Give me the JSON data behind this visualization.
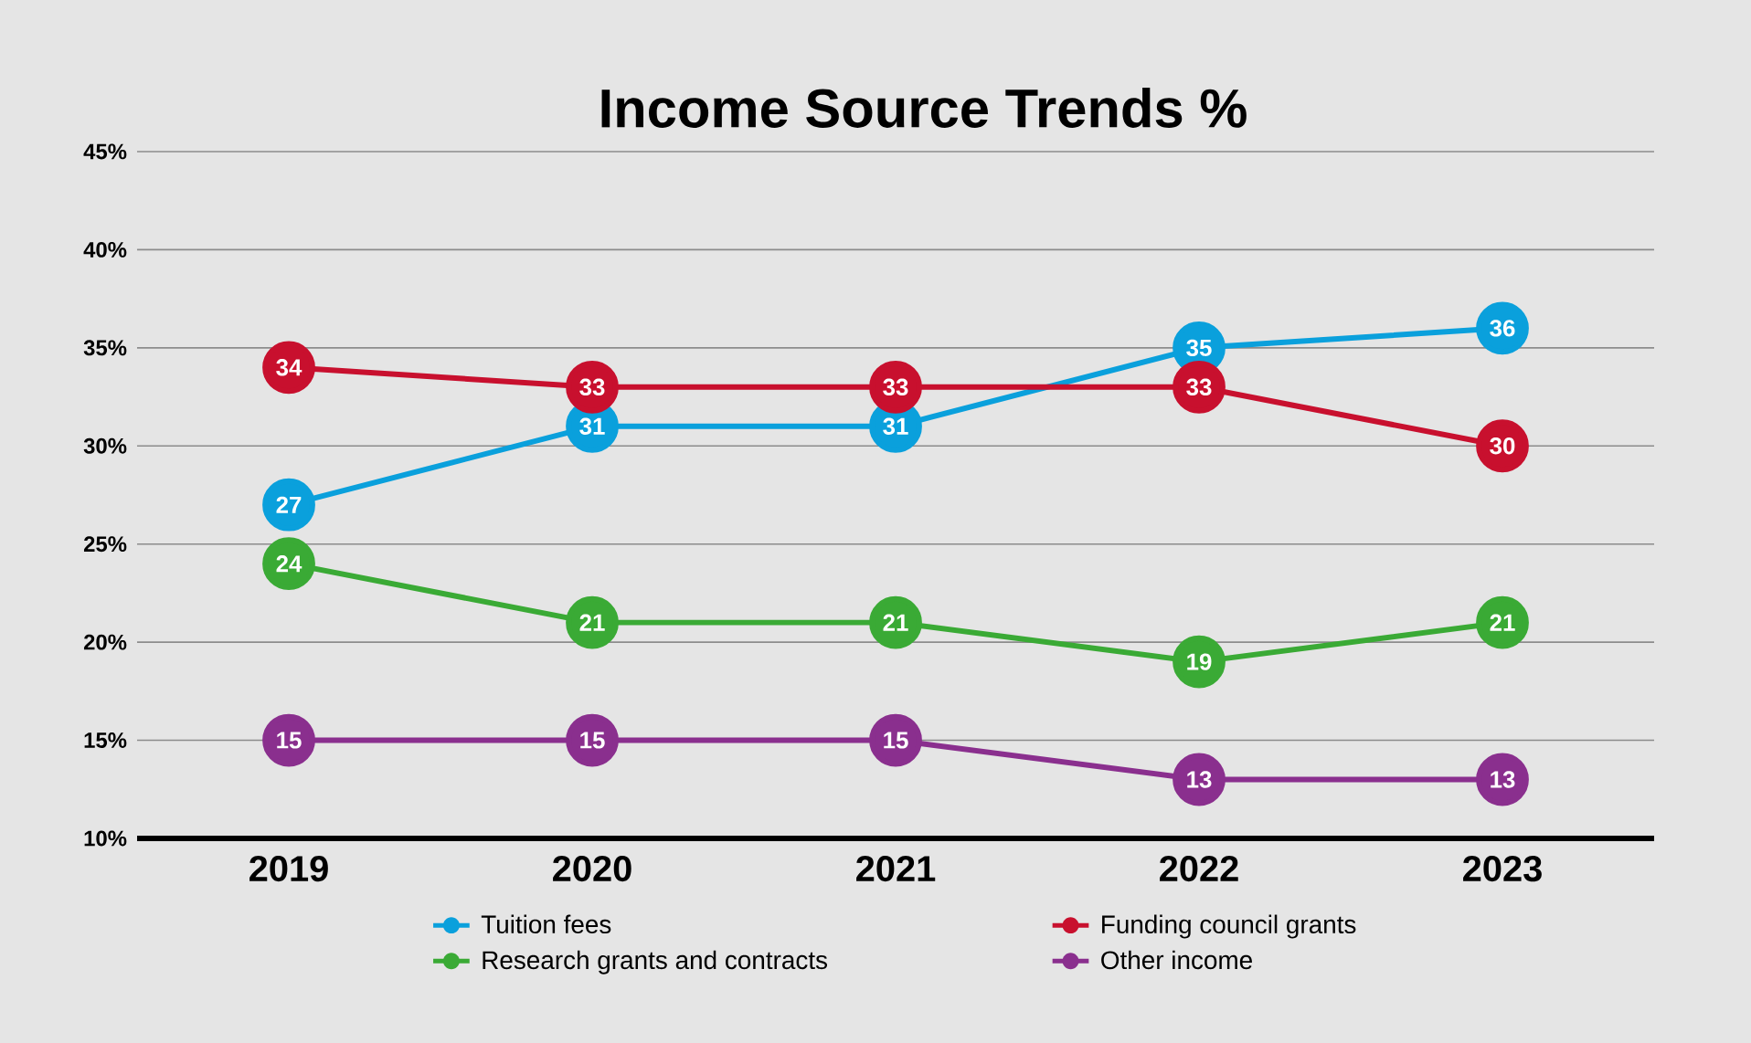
{
  "chart_data": {
    "type": "line",
    "title": "Income Source Trends %",
    "categories": [
      "2019",
      "2020",
      "2021",
      "2022",
      "2023"
    ],
    "ylim": [
      10,
      45
    ],
    "yticks": [
      {
        "value": 10,
        "label": "10%"
      },
      {
        "value": 15,
        "label": "15%"
      },
      {
        "value": 20,
        "label": "20%"
      },
      {
        "value": 25,
        "label": "25%"
      },
      {
        "value": 30,
        "label": "30%"
      },
      {
        "value": 35,
        "label": "35%"
      },
      {
        "value": 40,
        "label": "40%"
      },
      {
        "value": 45,
        "label": "45%"
      }
    ],
    "grid": "y",
    "data_labels": true,
    "legend": "bottom",
    "marker": "circle",
    "line_style": "solid",
    "series": [
      {
        "name": "Tuition fees",
        "color": "#0aa0dc",
        "values": [
          27,
          31,
          31,
          35,
          36
        ]
      },
      {
        "name": "Funding council grants",
        "color": "#c8102e",
        "values": [
          34,
          33,
          33,
          33,
          30
        ]
      },
      {
        "name": "Research grants and contracts",
        "color": "#3aaa35",
        "values": [
          24,
          21,
          21,
          19,
          21
        ]
      },
      {
        "name": "Other income",
        "color": "#8a2f8e",
        "values": [
          15,
          15,
          15,
          13,
          13
        ]
      }
    ]
  }
}
